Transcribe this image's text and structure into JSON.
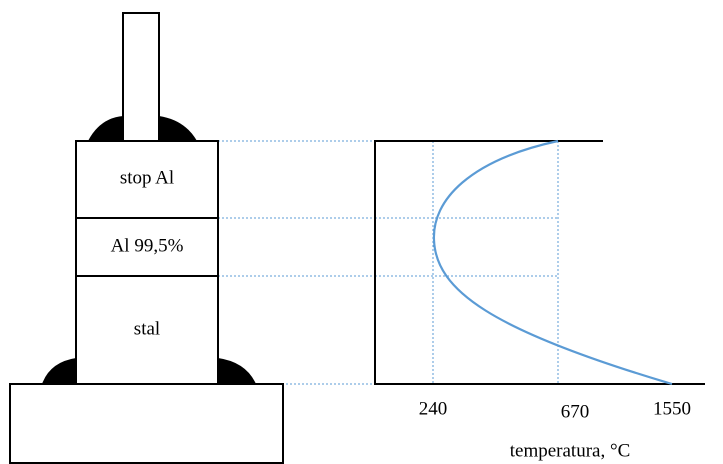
{
  "block": {
    "layers": [
      "stop Al",
      "Al 99,5%",
      "stal"
    ]
  },
  "temperature_axis": {
    "labels": [
      240,
      670,
      1550
    ],
    "title": "temperatura, °C"
  }
}
